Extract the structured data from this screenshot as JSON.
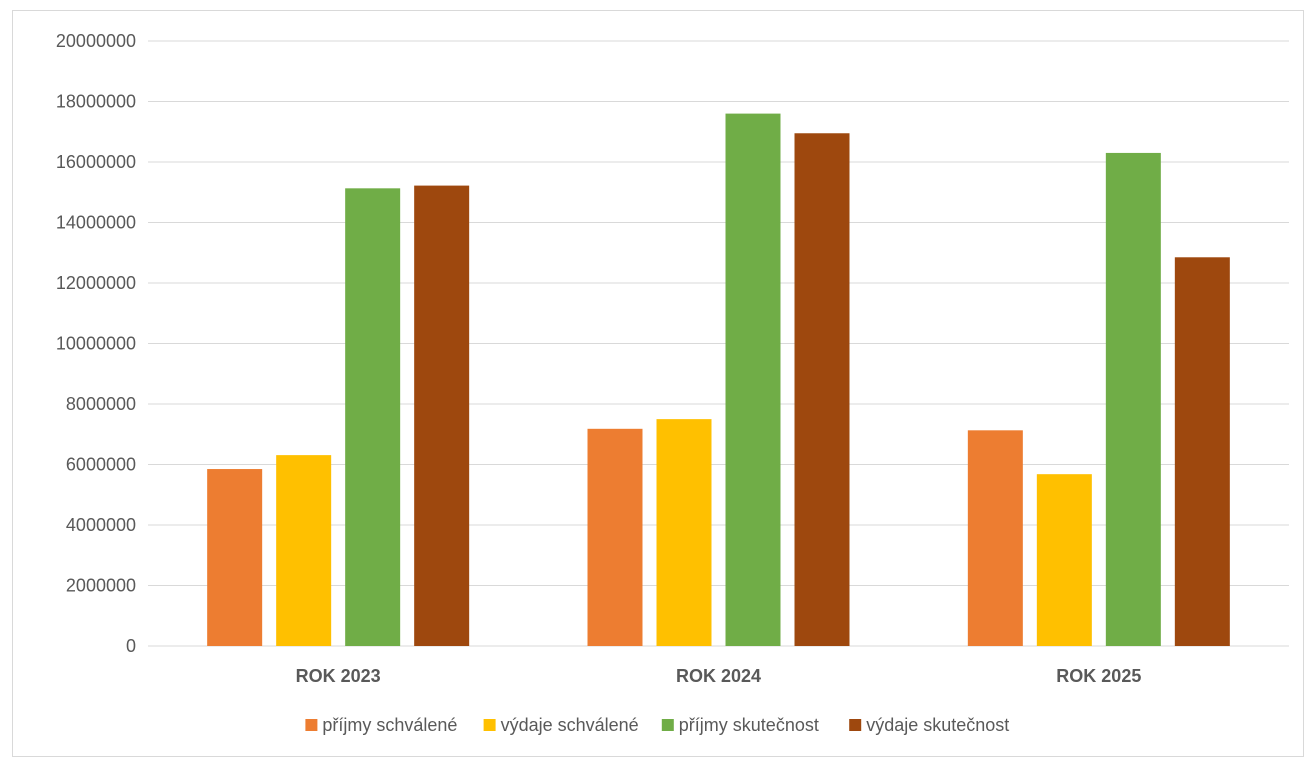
{
  "chart_data": {
    "type": "bar",
    "categories": [
      "ROK 2023",
      "ROK 2024",
      "ROK 2025"
    ],
    "series": [
      {
        "name": "příjmy schválené",
        "color": "#ED7D31",
        "values": [
          5850000,
          7180000,
          7130000
        ]
      },
      {
        "name": "výdaje schválené",
        "color": "#FFC000",
        "values": [
          6310000,
          7500000,
          5680000
        ]
      },
      {
        "name": "příjmy skutečnost",
        "color": "#70AD47",
        "values": [
          15130000,
          17600000,
          16300000
        ]
      },
      {
        "name": "výdaje skutečnost",
        "color": "#9E480E",
        "values": [
          15220000,
          16950000,
          12850000
        ]
      }
    ],
    "ylim": [
      0,
      20000000
    ],
    "yticks": [
      "0",
      "2000000",
      "4000000",
      "6000000",
      "8000000",
      "10000000",
      "12000000",
      "14000000",
      "16000000",
      "18000000",
      "20000000"
    ],
    "grid": true,
    "legend_position": "bottom",
    "title": "",
    "xlabel": "",
    "ylabel": ""
  }
}
